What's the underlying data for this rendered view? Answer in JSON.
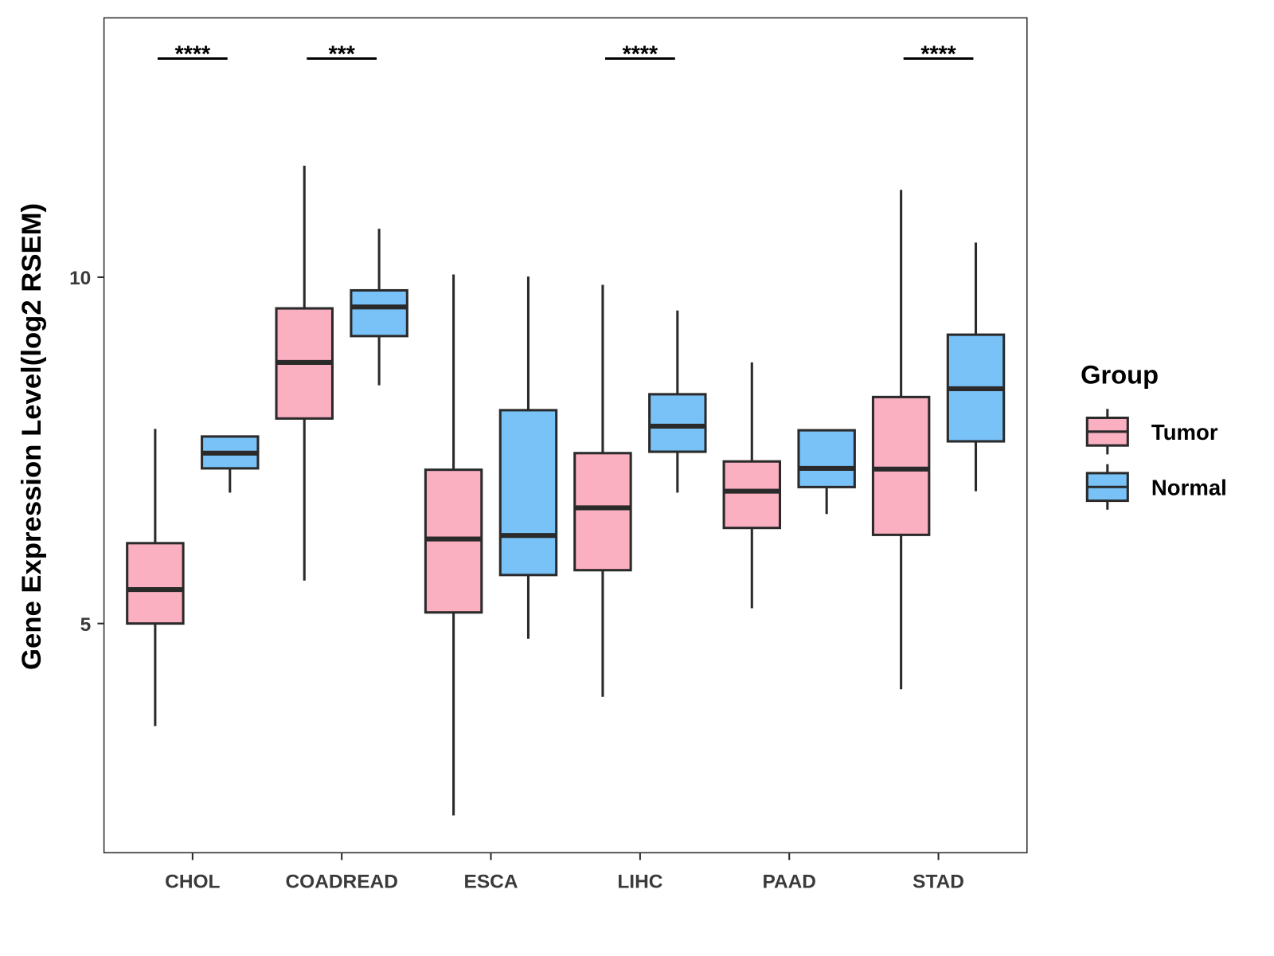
{
  "chart_data": {
    "type": "boxplot",
    "title": "",
    "xlabel": "",
    "ylabel": "Gene Expression Level(log2 RSEM)",
    "ylim": [
      1.69,
      13.74
    ],
    "yticks": [
      5,
      10
    ],
    "grid": false,
    "categories": [
      "CHOL",
      "COADREAD",
      "ESCA",
      "LIHC",
      "PAAD",
      "STAD"
    ],
    "legend": {
      "title": "Group",
      "placement": "right",
      "entries": [
        "Tumor",
        "Normal"
      ]
    },
    "colors": {
      "Tumor": "#FBB0C2",
      "Normal": "#78C2F8",
      "outline": "#2a2a2a"
    },
    "series": [
      {
        "name": "Tumor",
        "boxes": [
          {
            "min": 3.52,
            "q1": 5.0,
            "median": 5.49,
            "q3": 6.16,
            "max": 7.81
          },
          {
            "min": 5.62,
            "q1": 7.96,
            "median": 8.77,
            "q3": 9.55,
            "max": 11.61
          },
          {
            "min": 2.23,
            "q1": 5.16,
            "median": 6.22,
            "q3": 7.22,
            "max": 10.04
          },
          {
            "min": 3.94,
            "q1": 5.77,
            "median": 6.67,
            "q3": 7.46,
            "max": 9.89
          },
          {
            "min": 5.22,
            "q1": 6.38,
            "median": 6.91,
            "q3": 7.34,
            "max": 8.77
          },
          {
            "min": 4.05,
            "q1": 6.28,
            "median": 7.23,
            "q3": 8.27,
            "max": 11.26
          }
        ]
      },
      {
        "name": "Normal",
        "boxes": [
          {
            "min": 6.89,
            "q1": 7.24,
            "median": 7.46,
            "q3": 7.7,
            "max": 7.7
          },
          {
            "min": 8.44,
            "q1": 9.15,
            "median": 9.57,
            "q3": 9.81,
            "max": 10.7
          },
          {
            "min": 4.78,
            "q1": 5.7,
            "median": 6.27,
            "q3": 8.08,
            "max": 10.01
          },
          {
            "min": 6.89,
            "q1": 7.48,
            "median": 7.85,
            "q3": 8.31,
            "max": 9.52
          },
          {
            "min": 6.58,
            "q1": 6.97,
            "median": 7.24,
            "q3": 7.79,
            "max": 7.79
          },
          {
            "min": 6.91,
            "q1": 7.63,
            "median": 8.39,
            "q3": 9.17,
            "max": 10.5
          }
        ]
      }
    ],
    "significance": [
      "****",
      "***",
      "",
      "****",
      "",
      "****"
    ]
  }
}
